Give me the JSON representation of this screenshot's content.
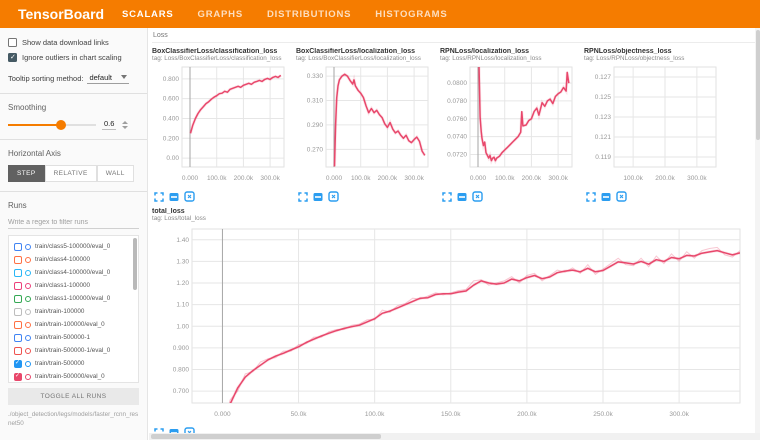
{
  "header": {
    "title": "TensorBoard",
    "tabs": [
      {
        "label": "SCALARS",
        "active": true
      },
      {
        "label": "GRAPHS",
        "active": false
      },
      {
        "label": "DISTRIBUTIONS",
        "active": false
      },
      {
        "label": "HISTOGRAMS",
        "active": false
      }
    ],
    "accent_color": "#f57c00"
  },
  "sidebar": {
    "checkboxes": [
      {
        "label": "Show data download links",
        "checked": false
      },
      {
        "label": "Ignore outliers in chart scaling",
        "checked": true
      }
    ],
    "tooltip_sort": {
      "label": "Tooltip sorting method:",
      "value": "default"
    },
    "smoothing": {
      "label": "Smoothing",
      "value": "0.6",
      "percent": 60
    },
    "horizontal_axis": {
      "label": "Horizontal Axis",
      "options": [
        "STEP",
        "RELATIVE",
        "WALL"
      ],
      "selected": "STEP"
    },
    "runs": {
      "label": "Runs",
      "filter_placeholder": "Write a regex to filter runs",
      "items": [
        {
          "name": "train/class5-100000/eval_0",
          "color": "#4184f3",
          "checked": false
        },
        {
          "name": "train/class4-100000",
          "color": "#ff7043",
          "checked": false
        },
        {
          "name": "train/class4-100000/eval_0",
          "color": "#29b6f6",
          "checked": false
        },
        {
          "name": "train/class1-100000",
          "color": "#ec407a",
          "checked": false
        },
        {
          "name": "train/class1-100000/eval_0",
          "color": "#34a853",
          "checked": false
        },
        {
          "name": "train/train-100000",
          "color": "#bdbdbd",
          "checked": false
        },
        {
          "name": "train/train-100000/eval_0",
          "color": "#ff7043",
          "checked": false
        },
        {
          "name": "train/train-500000-1",
          "color": "#4184f3",
          "checked": false
        },
        {
          "name": "train/train-500000-1/eval_0",
          "color": "#ef5350",
          "checked": false
        },
        {
          "name": "train/train-500000",
          "color": "#2196f3",
          "checked": true
        },
        {
          "name": "train/train-500000/eval_0",
          "color": "#e8476b",
          "checked": true
        }
      ],
      "toggle_all_label": "TOGGLE ALL RUNS",
      "log_dir": "./object_detection/legs/models/faster_rcnn_resnet50"
    }
  },
  "content": {
    "category": "Loss"
  },
  "chart_data": [
    {
      "id": "box-classifier-classification-loss",
      "size": "small",
      "type": "line",
      "title": "BoxClassifierLoss/classification_loss",
      "tag": "tag: Loss/BoxClassifierLoss/classification_loss",
      "xlabel": "step",
      "x_unit": "k",
      "xlim": [
        -30,
        352
      ],
      "ylim": [
        -0.09,
        0.92
      ],
      "xticks": [
        {
          "v": 0,
          "label": "0.000"
        },
        {
          "v": 100,
          "label": "100.0k"
        },
        {
          "v": 200,
          "label": "200.0k"
        },
        {
          "v": 300,
          "label": "300.0k"
        }
      ],
      "yticks": [
        {
          "v": 0,
          "label": "0.00"
        },
        {
          "v": 0.2,
          "label": "0.200"
        },
        {
          "v": 0.4,
          "label": "0.400"
        },
        {
          "v": 0.6,
          "label": "0.600"
        },
        {
          "v": 0.8,
          "label": "0.800"
        }
      ],
      "series": [
        {
          "name": "train/train-500000/eval_0",
          "style": "smoothed",
          "color": "#e8476b",
          "x": [
            2,
            10,
            20,
            30,
            40,
            50,
            60,
            70,
            80,
            90,
            100,
            110,
            120,
            130,
            140,
            150,
            160,
            170,
            180,
            190,
            200,
            210,
            220,
            230,
            240,
            250,
            260,
            270,
            280,
            290,
            300,
            310,
            320,
            330,
            340
          ],
          "y": [
            0.25,
            0.33,
            0.4,
            0.45,
            0.49,
            0.52,
            0.55,
            0.57,
            0.595,
            0.615,
            0.63,
            0.65,
            0.655,
            0.675,
            0.665,
            0.695,
            0.705,
            0.715,
            0.725,
            0.715,
            0.735,
            0.745,
            0.755,
            0.745,
            0.765,
            0.775,
            0.785,
            0.775,
            0.795,
            0.805,
            0.795,
            0.815,
            0.825,
            0.815,
            0.835
          ]
        }
      ]
    },
    {
      "id": "box-classifier-localization-loss",
      "size": "small",
      "type": "line",
      "title": "BoxClassifierLoss/localization_loss",
      "tag": "tag: Loss/BoxClassifierLoss/localization_loss",
      "xlabel": "step",
      "x_unit": "k",
      "xlim": [
        -30,
        352
      ],
      "ylim": [
        0.2555,
        0.3375
      ],
      "xticks": [
        {
          "v": 0,
          "label": "0.000"
        },
        {
          "v": 100,
          "label": "100.0k"
        },
        {
          "v": 200,
          "label": "200.0k"
        },
        {
          "v": 300,
          "label": "300.0k"
        }
      ],
      "yticks": [
        {
          "v": 0.27,
          "label": "0.270"
        },
        {
          "v": 0.29,
          "label": "0.290"
        },
        {
          "v": 0.31,
          "label": "0.310"
        },
        {
          "v": 0.33,
          "label": "0.330"
        }
      ],
      "series": [
        {
          "name": "train/train-500000/eval_0",
          "style": "smoothed",
          "color": "#e8476b",
          "x": [
            2,
            6,
            10,
            15,
            20,
            30,
            40,
            50,
            60,
            70,
            75,
            80,
            90,
            100,
            110,
            120,
            130,
            140,
            150,
            160,
            170,
            180,
            190,
            200,
            210,
            220,
            230,
            240,
            250,
            260,
            270,
            280,
            290,
            300,
            310,
            320,
            330,
            340
          ],
          "y": [
            0.256,
            0.29,
            0.312,
            0.322,
            0.327,
            0.33,
            0.3315,
            0.33,
            0.3265,
            0.3235,
            0.327,
            0.322,
            0.3185,
            0.316,
            0.3125,
            0.3055,
            0.3,
            0.3035,
            0.3,
            0.302,
            0.2985,
            0.296,
            0.291,
            0.288,
            0.292,
            0.2865,
            0.2835,
            0.285,
            0.2815,
            0.279,
            0.2815,
            0.277,
            0.2755,
            0.278,
            0.28,
            0.2765,
            0.2685,
            0.265
          ]
        }
      ]
    },
    {
      "id": "rpn-localization-loss",
      "size": "small",
      "type": "line",
      "title": "RPNLoss/localization_loss",
      "tag": "tag: Loss/RPNLoss/localization_loss",
      "xlabel": "step",
      "x_unit": "k",
      "xlim": [
        -30,
        352
      ],
      "ylim": [
        0.0706,
        0.0818
      ],
      "xticks": [
        {
          "v": 0,
          "label": "0.000"
        },
        {
          "v": 100,
          "label": "100.0k"
        },
        {
          "v": 200,
          "label": "200.0k"
        },
        {
          "v": 300,
          "label": "300.0k"
        }
      ],
      "yticks": [
        {
          "v": 0.072,
          "label": "0.0720"
        },
        {
          "v": 0.074,
          "label": "0.0740"
        },
        {
          "v": 0.076,
          "label": "0.0760"
        },
        {
          "v": 0.078,
          "label": "0.0780"
        },
        {
          "v": 0.08,
          "label": "0.0800"
        }
      ],
      "series": [
        {
          "name": "train/train-500000/eval_0",
          "style": "smoothed",
          "color": "#e8476b",
          "x": [
            2,
            4,
            8,
            12,
            15,
            20,
            25,
            30,
            35,
            40,
            45,
            50,
            55,
            60,
            65,
            70,
            80,
            90,
            100,
            110,
            120,
            130,
            140,
            150,
            160,
            164,
            168,
            180,
            190,
            200,
            210,
            220,
            228,
            240,
            250,
            260,
            270,
            280,
            290,
            300,
            310,
            320,
            330,
            334,
            340
          ],
          "y": [
            0.085,
            0.0815,
            0.0762,
            0.0746,
            0.0738,
            0.073,
            0.0734,
            0.0722,
            0.0719,
            0.0716,
            0.0719,
            0.0713,
            0.0716,
            0.0717,
            0.0713,
            0.0716,
            0.0718,
            0.0722,
            0.0725,
            0.0728,
            0.0731,
            0.0734,
            0.0737,
            0.074,
            0.0745,
            0.0768,
            0.0752,
            0.0753,
            0.0758,
            0.076,
            0.0768,
            0.0772,
            0.0764,
            0.0778,
            0.0774,
            0.078,
            0.0782,
            0.0777,
            0.0785,
            0.0788,
            0.079,
            0.0795,
            0.0791,
            0.0812,
            0.08
          ]
        }
      ]
    },
    {
      "id": "rpn-objectness-loss",
      "size": "small",
      "type": "line",
      "title": "RPNLoss/objectness_loss",
      "tag": "tag: Loss/RPNLoss/objectness_loss",
      "xlabel": "step",
      "x_unit": "k",
      "xlim": [
        40,
        360
      ],
      "ylim": [
        0.118,
        0.128
      ],
      "xticks": [
        {
          "v": 100,
          "label": "100.0k"
        },
        {
          "v": 200,
          "label": "200.0k"
        },
        {
          "v": 300,
          "label": "300.0k"
        }
      ],
      "yticks": [
        {
          "v": 0.119,
          "label": "0.119"
        },
        {
          "v": 0.121,
          "label": "0.121"
        },
        {
          "v": 0.123,
          "label": "0.123"
        },
        {
          "v": 0.125,
          "label": "0.125"
        },
        {
          "v": 0.127,
          "label": "0.127"
        }
      ],
      "series": []
    },
    {
      "id": "total-loss",
      "size": "large",
      "type": "line",
      "title": "total_loss",
      "tag": "tag: Loss/total_loss",
      "xlabel": "step",
      "x_unit": "k",
      "xlim": [
        -20,
        340
      ],
      "ylim": [
        0.645,
        1.45
      ],
      "xticks": [
        {
          "v": 0,
          "label": "0.000"
        },
        {
          "v": 50,
          "label": "50.0k"
        },
        {
          "v": 100,
          "label": "100.0k"
        },
        {
          "v": 150,
          "label": "150.0k"
        },
        {
          "v": 200,
          "label": "200.0k"
        },
        {
          "v": 250,
          "label": "250.0k"
        },
        {
          "v": 300,
          "label": "300.0k"
        }
      ],
      "yticks": [
        {
          "v": 0.7,
          "label": "0.700"
        },
        {
          "v": 0.8,
          "label": "0.800"
        },
        {
          "v": 0.9,
          "label": "0.900"
        },
        {
          "v": 1.0,
          "label": "1.00"
        },
        {
          "v": 1.1,
          "label": "1.10"
        },
        {
          "v": 1.2,
          "label": "1.20"
        },
        {
          "v": 1.3,
          "label": "1.30"
        },
        {
          "v": 1.4,
          "label": "1.40"
        }
      ],
      "series": [
        {
          "name": "train/train-500000/eval_0 (raw)",
          "style": "raw",
          "color": "#e8476b",
          "x": [
            2,
            5,
            10,
            15,
            20,
            25,
            30,
            35,
            40,
            45,
            50,
            55,
            60,
            65,
            70,
            75,
            80,
            85,
            90,
            95,
            100,
            105,
            110,
            115,
            120,
            125,
            130,
            135,
            140,
            145,
            150,
            155,
            160,
            165,
            170,
            175,
            180,
            185,
            190,
            195,
            200,
            205,
            210,
            215,
            220,
            225,
            230,
            235,
            240,
            245,
            250,
            255,
            260,
            265,
            270,
            275,
            280,
            285,
            290,
            295,
            300,
            305,
            310,
            315,
            320,
            325,
            330,
            335,
            340
          ],
          "y": [
            0.56,
            0.66,
            0.7,
            0.78,
            0.79,
            0.835,
            0.85,
            0.855,
            0.885,
            0.885,
            0.915,
            0.92,
            0.95,
            0.95,
            0.975,
            0.985,
            0.985,
            1.005,
            1.01,
            1.03,
            1.03,
            1.075,
            1.065,
            1.095,
            1.105,
            1.13,
            1.125,
            1.14,
            1.155,
            1.145,
            1.155,
            1.165,
            1.17,
            1.21,
            1.215,
            1.19,
            1.2,
            1.21,
            1.23,
            1.2,
            1.235,
            1.245,
            1.21,
            1.235,
            1.26,
            1.25,
            1.27,
            1.245,
            1.285,
            1.24,
            1.265,
            1.29,
            1.315,
            1.285,
            1.28,
            1.315,
            1.275,
            1.325,
            1.29,
            1.335,
            1.3,
            1.345,
            1.315,
            1.35,
            1.36,
            1.365,
            1.33,
            1.32,
            1.35
          ]
        },
        {
          "name": "train/train-500000/eval_0",
          "style": "smoothed",
          "color": "#e8476b",
          "x": [
            2,
            5,
            10,
            15,
            20,
            25,
            30,
            35,
            40,
            45,
            50,
            55,
            60,
            65,
            70,
            75,
            80,
            85,
            90,
            95,
            100,
            105,
            110,
            115,
            120,
            125,
            130,
            135,
            140,
            145,
            150,
            155,
            160,
            165,
            170,
            175,
            180,
            185,
            190,
            195,
            200,
            205,
            210,
            215,
            220,
            225,
            230,
            235,
            240,
            245,
            250,
            255,
            260,
            265,
            270,
            275,
            280,
            285,
            290,
            295,
            300,
            305,
            310,
            315,
            320,
            325,
            330,
            335,
            340
          ],
          "y": [
            0.575,
            0.64,
            0.715,
            0.765,
            0.795,
            0.82,
            0.845,
            0.862,
            0.875,
            0.89,
            0.905,
            0.925,
            0.94,
            0.955,
            0.968,
            0.98,
            0.99,
            0.998,
            1.005,
            1.02,
            1.035,
            1.06,
            1.07,
            1.085,
            1.1,
            1.115,
            1.13,
            1.132,
            1.147,
            1.15,
            1.15,
            1.158,
            1.163,
            1.19,
            1.21,
            1.2,
            1.195,
            1.2,
            1.218,
            1.21,
            1.225,
            1.235,
            1.22,
            1.228,
            1.248,
            1.255,
            1.26,
            1.252,
            1.268,
            1.252,
            1.258,
            1.278,
            1.298,
            1.293,
            1.288,
            1.3,
            1.287,
            1.308,
            1.3,
            1.318,
            1.312,
            1.328,
            1.325,
            1.338,
            1.344,
            1.35,
            1.34,
            1.33,
            1.34
          ]
        }
      ]
    }
  ]
}
